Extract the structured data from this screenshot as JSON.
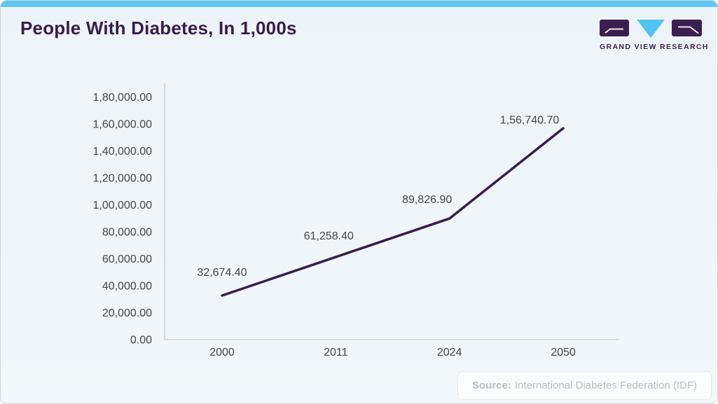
{
  "header": {
    "title": "People With Diabetes, In 1,000s",
    "logo": {
      "brand": "GRAND VIEW RESEARCH"
    }
  },
  "source": {
    "label": "Source:",
    "text": "International Diabetes Federation (IDF)"
  },
  "colors": {
    "accent_bar": "#5cc8f3",
    "title": "#3a1b4e",
    "series_line": "#3a1a50",
    "axis_line": "#c6ccd4",
    "tick_text": "#41444e",
    "data_label_text": "#41444e",
    "source_text": "#b7bdc4",
    "logo_purple": "#3d1e50",
    "logo_cyan": "#50c3ee",
    "card_background": "#f0f6fa"
  },
  "chart_data": {
    "type": "line",
    "title": "People With Diabetes, In 1,000s",
    "categories": [
      "2000",
      "2011",
      "2024",
      "2050"
    ],
    "values": [
      32674.4,
      61258.4,
      89826.9,
      156740.7
    ],
    "point_labels": [
      "32,674.40",
      "61,258.40",
      "89,826.90",
      "1,56,740.70"
    ],
    "xlabel": "",
    "ylabel": "",
    "ylim": [
      0,
      180000
    ],
    "y_tick_step": 20000,
    "y_tick_labels": [
      "0.00",
      "20,000.00",
      "40,000.00",
      "60,000.00",
      "80,000.00",
      "1,00,000.00",
      "1,20,000.00",
      "1,40,000.00",
      "1,60,000.00",
      "1,80,000.00"
    ],
    "grid": false,
    "legend": "none",
    "number_format": "indian"
  }
}
